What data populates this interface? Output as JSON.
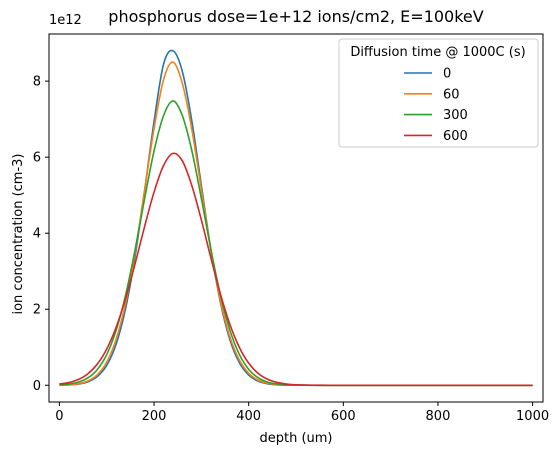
{
  "chart_data": {
    "type": "line",
    "title": "phosphorus dose=1e+12 ions/cm2, E=100keV",
    "xlabel": "depth (um)",
    "ylabel": "ion concentration (cm-3)",
    "y_multiplier_label": "1e12",
    "xlim": [
      -22,
      1022
    ],
    "ylim": [
      -0.44,
      9.24
    ],
    "xticks": [
      0,
      200,
      400,
      600,
      800,
      1000
    ],
    "xtick_labels": [
      "0",
      "200",
      "400",
      "600",
      "800",
      "1000"
    ],
    "yticks": [
      0,
      2,
      4,
      6,
      8
    ],
    "ytick_labels": [
      "0",
      "2",
      "4",
      "6",
      "8"
    ],
    "grid": false,
    "legend": {
      "title": "Diffusion time @ 1000C (s)",
      "location": "upper right"
    },
    "x": [
      0,
      20,
      40,
      60,
      80,
      100,
      120,
      140,
      160,
      180,
      200,
      220,
      240,
      260,
      280,
      300,
      320,
      340,
      360,
      380,
      400,
      420,
      440,
      460,
      480,
      500,
      550,
      600,
      700,
      800,
      900,
      1000
    ],
    "series": [
      {
        "name": "0",
        "color": "#1f77b4",
        "values": [
          0.003,
          0.01,
          0.032,
          0.089,
          0.229,
          0.525,
          1.087,
          2.027,
          3.398,
          5.12,
          6.939,
          8.441,
          8.8,
          8.244,
          6.94,
          5.257,
          3.582,
          2.196,
          1.212,
          0.601,
          0.269,
          0.108,
          0.039,
          0.013,
          0.004,
          0.001,
          0.0,
          0.0,
          0.0,
          0.0,
          0.0,
          0.0
        ]
      },
      {
        "name": "60",
        "color": "#ff7f0e",
        "values": [
          0.004,
          0.013,
          0.041,
          0.112,
          0.276,
          0.61,
          1.213,
          2.174,
          3.512,
          5.125,
          6.754,
          8.034,
          8.5,
          7.93,
          6.723,
          5.147,
          3.571,
          2.25,
          1.288,
          0.67,
          0.316,
          0.135,
          0.053,
          0.019,
          0.006,
          0.002,
          0.0,
          0.0,
          0.0,
          0.0,
          0.0,
          0.0
        ]
      },
      {
        "name": "300",
        "color": "#2ca02c",
        "values": [
          0.012,
          0.032,
          0.082,
          0.192,
          0.412,
          0.808,
          1.449,
          2.378,
          3.571,
          4.905,
          6.165,
          7.089,
          7.48,
          7.086,
          6.165,
          4.912,
          3.583,
          2.392,
          1.462,
          0.818,
          0.419,
          0.197,
          0.084,
          0.033,
          0.012,
          0.004,
          0.0,
          0.0,
          0.0,
          0.0,
          0.0,
          0.0
        ]
      },
      {
        "name": "600",
        "color": "#d62728",
        "values": [
          0.031,
          0.071,
          0.152,
          0.301,
          0.555,
          0.954,
          1.53,
          2.291,
          3.2,
          4.174,
          5.082,
          5.777,
          6.1,
          5.897,
          5.245,
          4.348,
          3.355,
          2.41,
          1.612,
          1.004,
          0.582,
          0.314,
          0.158,
          0.074,
          0.032,
          0.013,
          0.001,
          0.0,
          0.0,
          0.0,
          0.0,
          0.0
        ]
      }
    ]
  }
}
